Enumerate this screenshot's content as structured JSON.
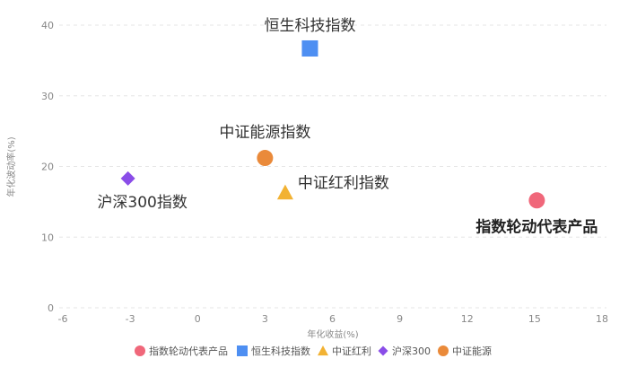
{
  "chart_data": {
    "type": "scatter",
    "xlabel": "年化收益(%)",
    "ylabel": "年化波动率(%)",
    "xlim": [
      -6,
      18
    ],
    "ylim": [
      0,
      40
    ],
    "xticks": [
      -6,
      -3,
      0,
      3,
      6,
      9,
      12,
      15,
      18
    ],
    "yticks": [
      0,
      10,
      20,
      30,
      40
    ],
    "grid": "horizontal dashed",
    "legend_position": "bottom",
    "series": [
      {
        "name": "指数轮动代表产品",
        "short": "指数轮动代表产品",
        "marker": "circle",
        "color": "#f0677a",
        "x": 15.1,
        "y": 15.2,
        "label": "指数轮动代表产品",
        "label_style": "bold"
      },
      {
        "name": "恒生科技指数",
        "short": "恒生科技指数",
        "marker": "square",
        "color": "#4e8ff2",
        "x": 5.0,
        "y": 36.7,
        "label": "恒生科技指数",
        "label_style": "normal"
      },
      {
        "name": "中证红利指数",
        "short": "中证红利",
        "marker": "triangle",
        "color": "#f2b233",
        "x": 3.9,
        "y": 16.3,
        "label": "中证红利指数",
        "label_style": "normal"
      },
      {
        "name": "沪深300指数",
        "short": "沪深300",
        "marker": "diamond",
        "color": "#8a4de8",
        "x": -3.1,
        "y": 18.3,
        "label": "沪深300指数",
        "label_style": "normal"
      },
      {
        "name": "中证能源指数",
        "short": "中证能源",
        "marker": "circle",
        "color": "#ea8a3a",
        "x": 3.0,
        "y": 21.2,
        "label": "中证能源指数",
        "label_style": "normal"
      }
    ]
  }
}
